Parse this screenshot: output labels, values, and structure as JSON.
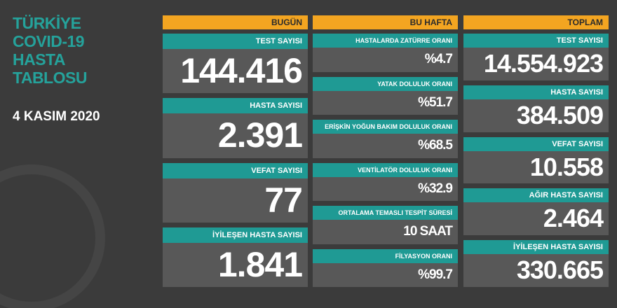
{
  "title": [
    "TÜRKİYE",
    "COVID-19",
    "HASTA",
    "TABLOSU"
  ],
  "date": "4 KASIM 2020",
  "columns": [
    {
      "header": "BUGÜN",
      "items": [
        {
          "label": "TEST SAYISI",
          "value": "144.416"
        },
        {
          "label": "HASTA SAYISI",
          "value": "2.391"
        },
        {
          "label": "VEFAT SAYISI",
          "value": "77"
        },
        {
          "label": "İYİLEŞEN HASTA SAYISI",
          "value": "1.841"
        }
      ]
    },
    {
      "header": "BU HAFTA",
      "items": [
        {
          "label": "HASTALARDA ZATÜRRE ORANI",
          "value": "%4.7"
        },
        {
          "label": "YATAK DOLULUK ORANI",
          "value": "%51.7"
        },
        {
          "label": "ERİŞKİN YOĞUN BAKIM DOLULUK ORANI",
          "value": "%68.5"
        },
        {
          "label": "VENTİLATÖR DOLULUK ORANI",
          "value": "%32.9"
        },
        {
          "label": "ORTALAMA TEMASLI TESPİT SÜRESİ",
          "value": "10 SAAT"
        },
        {
          "label": "FİLYASYON ORANI",
          "value": "%99.7"
        }
      ]
    },
    {
      "header": "TOPLAM",
      "items": [
        {
          "label": "TEST SAYISI",
          "value": "14.554.923"
        },
        {
          "label": "HASTA SAYISI",
          "value": "384.509"
        },
        {
          "label": "VEFAT SAYISI",
          "value": "10.558"
        },
        {
          "label": "AĞIR HASTA SAYISI",
          "value": "2.464"
        },
        {
          "label": "İYİLEŞEN HASTA SAYISI",
          "value": "330.665"
        }
      ]
    }
  ]
}
